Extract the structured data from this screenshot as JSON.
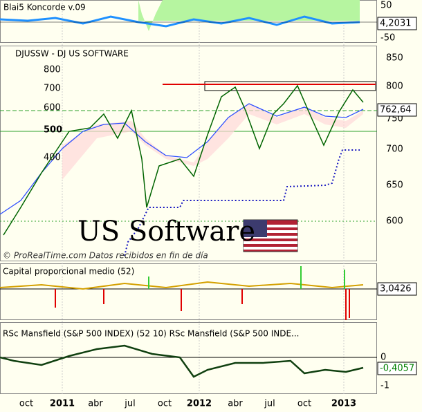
{
  "panels": [
    {
      "title": "Blai5 Koncorde v.09",
      "axis_labels": [
        "50",
        "-50"
      ],
      "last_value": "4,2031"
    },
    {
      "title": "DJUSSW - DJ US SOFTWARE",
      "axis_labels": [
        "850",
        "800",
        "750",
        "700",
        "650",
        "600"
      ],
      "inset_labels": [
        "800",
        "700",
        "600",
        "500",
        "400"
      ],
      "last_value": "762,64",
      "watermark": "US Software",
      "credit": "© ProRealTime.com Datos recibidos en fin de día"
    },
    {
      "title": "Capital proporcional medio (52)",
      "last_value": "3,0426"
    },
    {
      "title": "RSc Mansfield (S&P 500 INDEX) (52 10) RSc Mansfield (S&P 500 INDE...",
      "axis_labels": [
        "0",
        "-1"
      ],
      "last_value": "-0,4057"
    }
  ],
  "time_axis": [
    "oct",
    "2011",
    "abr",
    "jul",
    "oct",
    "2012",
    "abr",
    "jul",
    "oct",
    "2013"
  ]
}
